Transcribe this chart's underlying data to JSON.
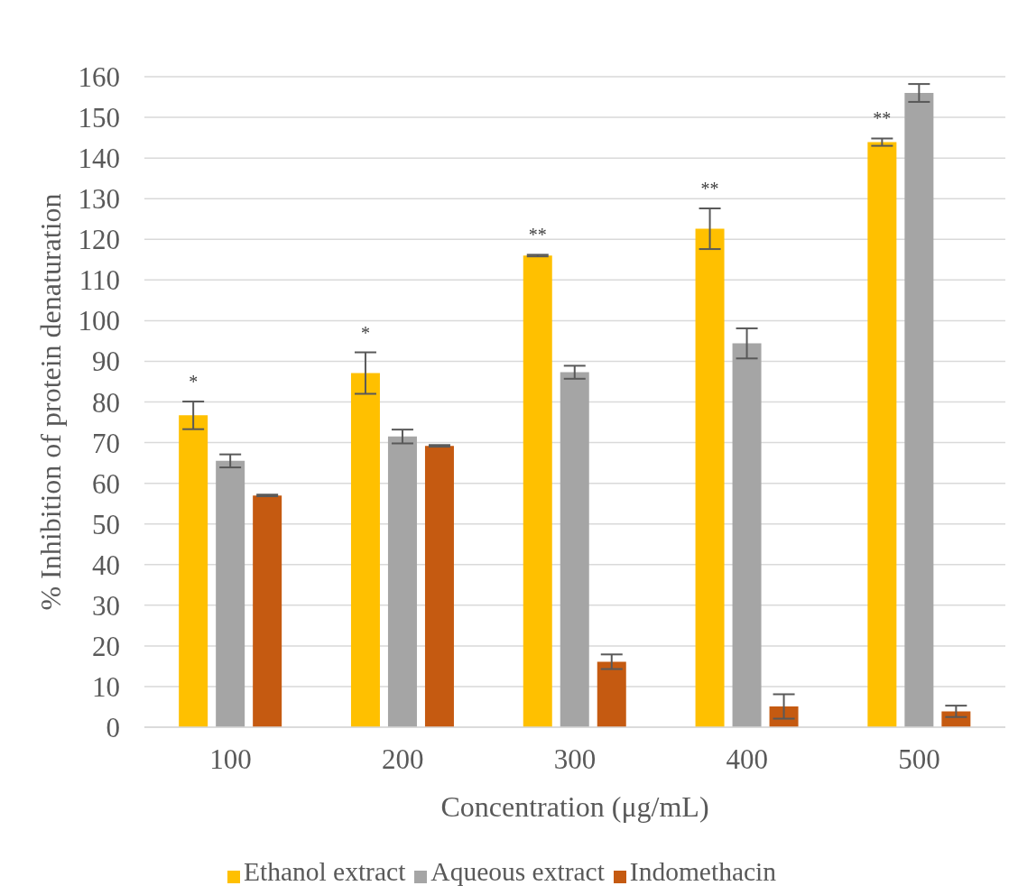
{
  "chart_data": {
    "type": "bar",
    "xlabel": "Concentration (μg/mL)",
    "ylabel": "% Inhibition of protein denaturation",
    "categories": [
      "100",
      "200",
      "300",
      "400",
      "500"
    ],
    "series": [
      {
        "name": "Ethanol extract",
        "color": "#ffc000",
        "values": [
          76.7,
          87.1,
          116.0,
          122.6,
          143.9
        ],
        "errors": [
          3.4,
          5.1,
          0.2,
          5.0,
          0.9
        ]
      },
      {
        "name": "Aqueous extract",
        "color": "#a5a5a5",
        "values": [
          65.5,
          71.5,
          87.3,
          94.4,
          156.0
        ],
        "errors": [
          1.6,
          1.7,
          1.6,
          3.7,
          2.2
        ]
      },
      {
        "name": "Indomethacin",
        "color": "#c55a11",
        "values": [
          57.0,
          69.2,
          16.1,
          5.1,
          3.9
        ],
        "errors": [
          0.2,
          0.2,
          1.8,
          3.0,
          1.4
        ]
      }
    ],
    "ylim": [
      0,
      160
    ],
    "yticks": [
      0,
      10,
      20,
      30,
      40,
      50,
      60,
      70,
      80,
      90,
      100,
      110,
      120,
      130,
      140,
      150,
      160
    ],
    "grid": "y",
    "legend": "bottom",
    "annotations": [
      "*",
      "*",
      "**",
      "**",
      "**"
    ]
  }
}
